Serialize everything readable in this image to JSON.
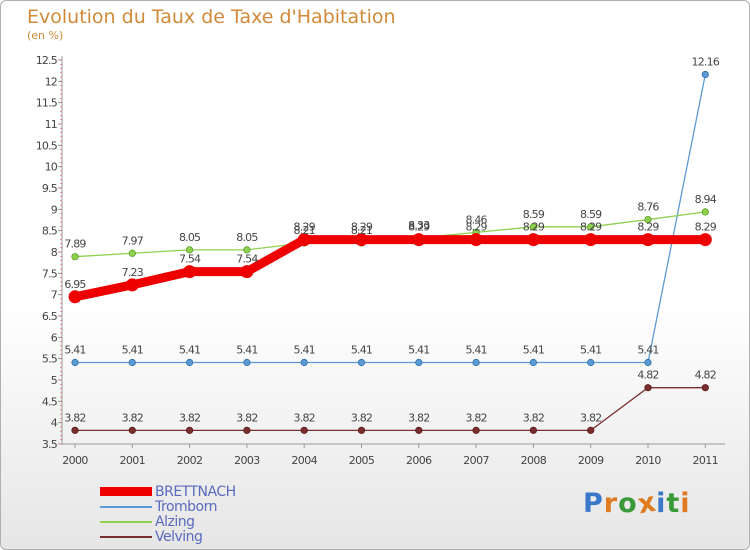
{
  "title": "Evolution du Taux de Taxe d'Habitation",
  "subtitle": "(en %)",
  "logo": {
    "text": "Proxiti",
    "colors": [
      "#3a78c9",
      "#e07a20",
      "#3a9a3a",
      "#e07a20",
      "#3a78c9",
      "#3a9a3a",
      "#e07a20"
    ]
  },
  "chart_data": {
    "type": "line",
    "title": "Evolution du Taux de Taxe d'Habitation",
    "ylabel": "(en %)",
    "xlabel": "",
    "x": [
      "2000",
      "2001",
      "2002",
      "2003",
      "2004",
      "2005",
      "2006",
      "2007",
      "2008",
      "2009",
      "2010",
      "2011"
    ],
    "ylim": [
      3.5,
      12.5
    ],
    "yticks": [
      "3.5",
      "4",
      "4.5",
      "5",
      "5.5",
      "6",
      "6.5",
      "7",
      "7.5",
      "8",
      "8.5",
      "9",
      "9.5",
      "10",
      "10.5",
      "11",
      "11.5",
      "12",
      "12.5"
    ],
    "series": [
      {
        "name": "BRETTNACH",
        "color": "#ee0000",
        "bold": true,
        "values": [
          6.95,
          7.23,
          7.54,
          7.54,
          8.29,
          8.29,
          8.29,
          8.29,
          8.29,
          8.29,
          8.29,
          8.29
        ],
        "labels": [
          "6.95",
          "7.23",
          "7.54",
          "7.54",
          "8.29",
          "8.29",
          "8.29",
          "8.29",
          "8.29",
          "8.29",
          "8.29",
          "8.29"
        ]
      },
      {
        "name": "Tromborn",
        "color": "#5b9bd5",
        "bold": false,
        "values": [
          5.41,
          5.41,
          5.41,
          5.41,
          5.41,
          5.41,
          5.41,
          5.41,
          5.41,
          5.41,
          5.41,
          12.16
        ],
        "labels": [
          "5.41",
          "5.41",
          "5.41",
          "5.41",
          "5.41",
          "5.41",
          "5.41",
          "5.41",
          "5.41",
          "5.41",
          "5.41",
          "12.16"
        ]
      },
      {
        "name": "Alzing",
        "color": "#8fd14f",
        "bold": false,
        "values": [
          7.89,
          7.97,
          8.05,
          8.05,
          8.21,
          8.21,
          8.33,
          8.46,
          8.59,
          8.59,
          8.76,
          8.94
        ],
        "labels": [
          "7.89",
          "7.97",
          "8.05",
          "8.05",
          "8.21",
          "8.21",
          "8.33",
          "8.46",
          "8.59",
          "8.59",
          "8.76",
          "8.94"
        ]
      },
      {
        "name": "Velving",
        "color": "#7a2e2e",
        "bold": false,
        "values": [
          3.82,
          3.82,
          3.82,
          3.82,
          3.82,
          3.82,
          3.82,
          3.82,
          3.82,
          3.82,
          4.82,
          4.82
        ],
        "labels": [
          "3.82",
          "3.82",
          "3.82",
          "3.82",
          "3.82",
          "3.82",
          "3.82",
          "3.82",
          "3.82",
          "3.82",
          "4.82",
          "4.82"
        ]
      }
    ],
    "legend": "bottom-left",
    "grid": false
  }
}
